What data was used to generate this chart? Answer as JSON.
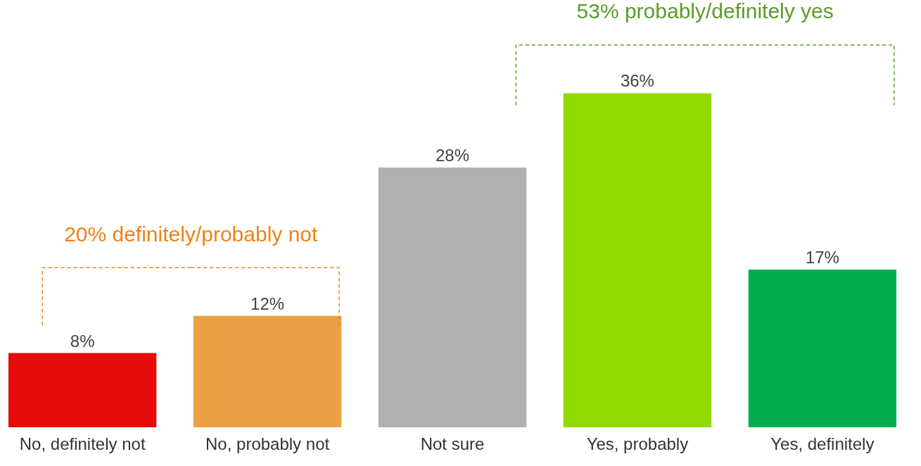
{
  "chart_data": {
    "type": "bar",
    "categories": [
      "No, definitely not",
      "No, probably not",
      "Not sure",
      "Yes, probably",
      "Yes, definitely"
    ],
    "values": [
      8,
      12,
      28,
      36,
      17
    ],
    "colors": [
      "#e60a0a",
      "#eba046",
      "#b0b0b0",
      "#92d900",
      "#00b050"
    ],
    "value_labels": [
      "8%",
      "12%",
      "28%",
      "36%",
      "17%"
    ],
    "annotations": [
      "20% definitely/probably not",
      "53% probably/definitely yes"
    ],
    "grid": false
  }
}
